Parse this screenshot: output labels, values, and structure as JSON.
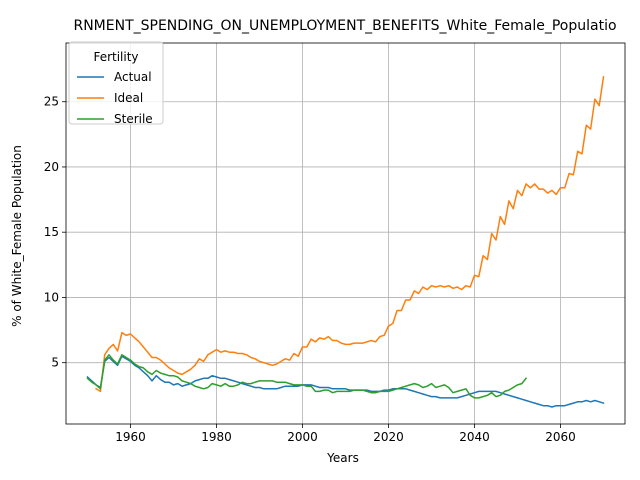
{
  "chart_data": {
    "type": "line",
    "title": "RNMENT_SPENDING_ON_UNEMPLOYMENT_BENEFITS_White_Female_Populatio",
    "xlabel": "Years",
    "ylabel": "% of White_Female Population",
    "xlim": [
      1945,
      2075
    ],
    "ylim": [
      0.3,
      29.5
    ],
    "xticks": [
      1960,
      1980,
      2000,
      2020,
      2040,
      2060
    ],
    "yticks": [
      5,
      10,
      15,
      20,
      25
    ],
    "grid": true,
    "legend": {
      "title": "Fertility",
      "position": "top-left"
    },
    "series": [
      {
        "name": "Actual",
        "color": "#1f77b4",
        "x": [
          1950,
          1951,
          1952,
          1953,
          1954,
          1955,
          1956,
          1957,
          1958,
          1959,
          1960,
          1961,
          1962,
          1963,
          1964,
          1965,
          1966,
          1967,
          1968,
          1969,
          1970,
          1971,
          1972,
          1973,
          1974,
          1975,
          1976,
          1977,
          1978,
          1979,
          1980,
          1981,
          1982,
          1983,
          1984,
          1985,
          1986,
          1987,
          1988,
          1989,
          1990,
          1991,
          1992,
          1993,
          1994,
          1995,
          1996,
          1997,
          1998,
          1999,
          2000,
          2001,
          2002,
          2003,
          2004,
          2005,
          2006,
          2007,
          2008,
          2009,
          2010,
          2011,
          2012,
          2013,
          2014,
          2015,
          2016,
          2017,
          2018,
          2019,
          2020,
          2021,
          2022,
          2023,
          2024,
          2025,
          2026,
          2027,
          2028,
          2029,
          2030,
          2031,
          2032,
          2033,
          2034,
          2035,
          2036,
          2037,
          2038,
          2039,
          2040,
          2041,
          2042,
          2043,
          2044,
          2045,
          2046,
          2047,
          2048,
          2049,
          2050,
          2051,
          2052,
          2053,
          2054,
          2055,
          2056,
          2057,
          2058,
          2059,
          2060,
          2061,
          2062,
          2063,
          2064,
          2065,
          2066,
          2067,
          2068,
          2069,
          2070
        ],
        "values": [
          3.9,
          3.6,
          3.3,
          3.1,
          5.1,
          5.4,
          5.1,
          4.8,
          5.5,
          5.3,
          5.1,
          4.8,
          4.6,
          4.3,
          4.0,
          3.6,
          4.0,
          3.7,
          3.5,
          3.5,
          3.3,
          3.4,
          3.2,
          3.3,
          3.4,
          3.6,
          3.7,
          3.8,
          3.8,
          4.0,
          3.9,
          3.8,
          3.8,
          3.7,
          3.6,
          3.5,
          3.4,
          3.3,
          3.2,
          3.1,
          3.1,
          3.0,
          3.0,
          3.0,
          3.0,
          3.1,
          3.2,
          3.2,
          3.2,
          3.2,
          3.3,
          3.3,
          3.3,
          3.2,
          3.1,
          3.1,
          3.1,
          3.0,
          3.0,
          3.0,
          3.0,
          2.9,
          2.9,
          2.9,
          2.9,
          2.9,
          2.8,
          2.8,
          2.8,
          2.9,
          2.9,
          3.0,
          3.0,
          3.0,
          3.0,
          2.9,
          2.8,
          2.7,
          2.6,
          2.5,
          2.4,
          2.4,
          2.3,
          2.3,
          2.3,
          2.3,
          2.3,
          2.4,
          2.5,
          2.6,
          2.7,
          2.8,
          2.8,
          2.8,
          2.8,
          2.8,
          2.7,
          2.6,
          2.5,
          2.4,
          2.3,
          2.2,
          2.1,
          2.0,
          1.9,
          1.8,
          1.7,
          1.7,
          1.6,
          1.7,
          1.7,
          1.7,
          1.8,
          1.9,
          2.0,
          2.0,
          2.1,
          2.0,
          2.1,
          2.0,
          1.9
        ]
      },
      {
        "name": "Ideal",
        "color": "#ff7f0e",
        "x": [
          1952,
          1953,
          1954,
          1955,
          1956,
          1957,
          1958,
          1959,
          1960,
          1961,
          1962,
          1963,
          1964,
          1965,
          1966,
          1967,
          1968,
          1969,
          1970,
          1971,
          1972,
          1973,
          1974,
          1975,
          1976,
          1977,
          1978,
          1979,
          1980,
          1981,
          1982,
          1983,
          1984,
          1985,
          1986,
          1987,
          1988,
          1989,
          1990,
          1991,
          1992,
          1993,
          1994,
          1995,
          1996,
          1997,
          1998,
          1999,
          2000,
          2001,
          2002,
          2003,
          2004,
          2005,
          2006,
          2007,
          2008,
          2009,
          2010,
          2011,
          2012,
          2013,
          2014,
          2015,
          2016,
          2017,
          2018,
          2019,
          2020,
          2021,
          2022,
          2023,
          2024,
          2025,
          2026,
          2027,
          2028,
          2029,
          2030,
          2031,
          2032,
          2033,
          2034,
          2035,
          2036,
          2037,
          2038,
          2039,
          2040,
          2041,
          2042,
          2043,
          2044,
          2045,
          2046,
          2047,
          2048,
          2049,
          2050,
          2051,
          2052,
          2053,
          2054,
          2055,
          2056,
          2057,
          2058,
          2059,
          2060,
          2061,
          2062,
          2063,
          2064,
          2065,
          2066,
          2067,
          2068,
          2069,
          2070
        ],
        "values": [
          3.0,
          2.8,
          5.6,
          6.1,
          6.4,
          5.9,
          7.3,
          7.1,
          7.2,
          6.9,
          6.6,
          6.2,
          5.8,
          5.4,
          5.4,
          5.2,
          4.9,
          4.6,
          4.4,
          4.2,
          4.1,
          4.3,
          4.5,
          4.8,
          5.3,
          5.1,
          5.6,
          5.8,
          6.0,
          5.8,
          5.9,
          5.8,
          5.8,
          5.7,
          5.7,
          5.6,
          5.4,
          5.3,
          5.1,
          5.0,
          4.9,
          4.8,
          4.9,
          5.1,
          5.3,
          5.2,
          5.7,
          5.5,
          6.2,
          6.2,
          6.8,
          6.6,
          6.9,
          6.8,
          7.0,
          6.7,
          6.7,
          6.5,
          6.4,
          6.4,
          6.5,
          6.5,
          6.5,
          6.6,
          6.7,
          6.6,
          7.0,
          7.1,
          7.8,
          8.0,
          9.0,
          9.0,
          9.8,
          9.8,
          10.5,
          10.3,
          10.8,
          10.6,
          10.9,
          10.8,
          10.9,
          10.8,
          10.9,
          10.7,
          10.8,
          10.6,
          10.9,
          10.8,
          11.7,
          11.6,
          13.2,
          12.9,
          14.9,
          14.4,
          16.2,
          15.6,
          17.4,
          16.8,
          18.2,
          17.8,
          18.7,
          18.4,
          18.7,
          18.3,
          18.3,
          18.0,
          18.2,
          17.9,
          18.4,
          18.4,
          19.5,
          19.4,
          21.2,
          21.0,
          23.2,
          22.9,
          25.2,
          24.7,
          26.9
        ]
      },
      {
        "name": "Sterile",
        "color": "#2ca02c",
        "x": [
          1950,
          1951,
          1952,
          1953,
          1954,
          1955,
          1956,
          1957,
          1958,
          1959,
          1960,
          1961,
          1962,
          1963,
          1964,
          1965,
          1966,
          1967,
          1968,
          1969,
          1970,
          1971,
          1972,
          1973,
          1974,
          1975,
          1976,
          1977,
          1978,
          1979,
          1980,
          1981,
          1982,
          1983,
          1984,
          1985,
          1986,
          1987,
          1988,
          1989,
          1990,
          1991,
          1992,
          1993,
          1994,
          1995,
          1996,
          1997,
          1998,
          1999,
          2000,
          2001,
          2002,
          2003,
          2004,
          2005,
          2006,
          2007,
          2008,
          2009,
          2010,
          2011,
          2012,
          2013,
          2014,
          2015,
          2016,
          2017,
          2018,
          2019,
          2020,
          2021,
          2022,
          2023,
          2024,
          2025,
          2026,
          2027,
          2028,
          2029,
          2030,
          2031,
          2032,
          2033,
          2034,
          2035,
          2036,
          2037,
          2038,
          2039,
          2040,
          2041,
          2042,
          2043,
          2044,
          2045,
          2046,
          2047,
          2048,
          2049,
          2050,
          2051,
          2052
        ],
        "values": [
          3.8,
          3.5,
          3.3,
          3.0,
          5.2,
          5.6,
          5.2,
          4.9,
          5.6,
          5.4,
          5.2,
          4.9,
          4.7,
          4.6,
          4.3,
          4.1,
          4.4,
          4.2,
          4.1,
          4.0,
          4.0,
          3.9,
          3.6,
          3.5,
          3.4,
          3.2,
          3.1,
          3.0,
          3.1,
          3.4,
          3.3,
          3.2,
          3.4,
          3.2,
          3.2,
          3.3,
          3.5,
          3.4,
          3.4,
          3.5,
          3.6,
          3.6,
          3.6,
          3.6,
          3.5,
          3.5,
          3.5,
          3.4,
          3.3,
          3.3,
          3.3,
          3.2,
          3.2,
          2.8,
          2.8,
          2.9,
          2.9,
          2.7,
          2.8,
          2.8,
          2.8,
          2.8,
          2.9,
          2.9,
          2.9,
          2.8,
          2.7,
          2.7,
          2.8,
          2.8,
          2.8,
          2.9,
          3.0,
          3.1,
          3.2,
          3.3,
          3.4,
          3.3,
          3.1,
          3.2,
          3.4,
          3.1,
          3.2,
          3.3,
          3.1,
          2.7,
          2.8,
          2.9,
          3.0,
          2.5,
          2.3,
          2.3,
          2.4,
          2.5,
          2.7,
          2.4,
          2.5,
          2.8,
          2.9,
          3.1,
          3.3,
          3.4,
          3.8
        ]
      }
    ]
  }
}
